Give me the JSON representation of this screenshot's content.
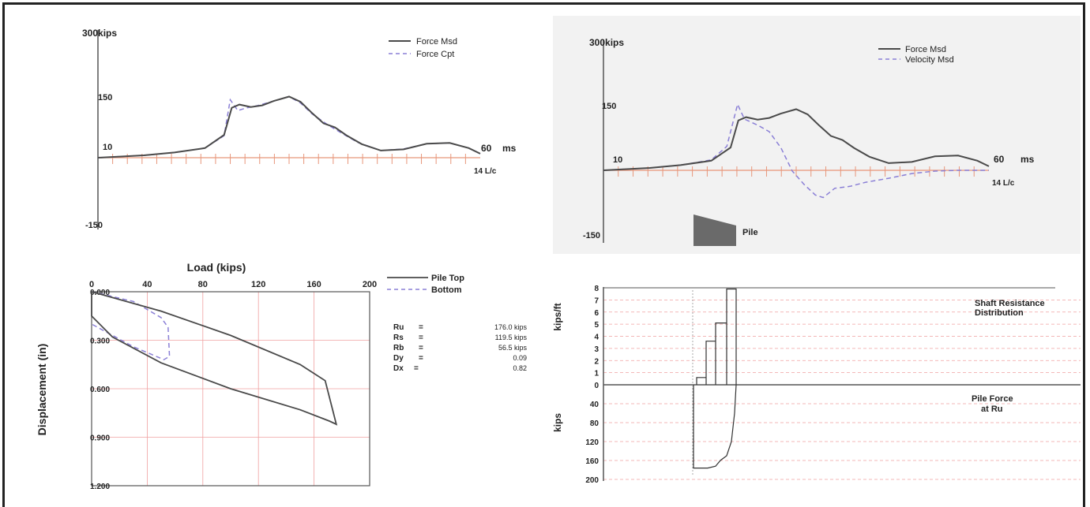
{
  "colors": {
    "measured": "#4a4a4a",
    "computed": "#8a7fd6",
    "tick": "#e8967a",
    "grid": "#f0a0a0",
    "pile_fill": "#6a6a6a"
  },
  "force_chart": {
    "y_label": "300kips",
    "legend": [
      "Force Msd",
      "Force Cpt"
    ],
    "y_ticks": [
      "150",
      "-150"
    ],
    "x_start_label": "10",
    "x_end_label": "60",
    "x_unit": "ms",
    "lc_label": "14 L/c"
  },
  "velocity_chart": {
    "y_label": "300kips",
    "legend": [
      "Force Msd",
      "Velocity Msd"
    ],
    "y_ticks": [
      "150",
      "-150"
    ],
    "x_start_label": "10",
    "x_end_label": "60",
    "x_unit": "ms",
    "lc_label": "14 L/c",
    "pile_label": "Pile"
  },
  "load_chart": {
    "x_title": "Load (kips)",
    "y_title": "Displacement (in)",
    "x_ticks": [
      "0",
      "40",
      "80",
      "120",
      "160",
      "200"
    ],
    "y_ticks": [
      "0.000",
      "0.300",
      "0.600",
      "0.900",
      "1.200"
    ],
    "legend": [
      "Pile Top",
      "Bottom"
    ],
    "results": [
      {
        "label": "Ru",
        "eq": "=",
        "value": "176.0 kips"
      },
      {
        "label": "Rs",
        "eq": "=",
        "value": "119.5 kips"
      },
      {
        "label": "Rb",
        "eq": "=",
        "value": "56.5 kips"
      },
      {
        "label": "Dy",
        "eq": "=",
        "value": "0.09"
      },
      {
        "label": "Dx",
        "eq": "=",
        "value": "0.82"
      }
    ]
  },
  "distribution_chart": {
    "upper_unit": "kips/ft",
    "lower_unit": "kips",
    "upper_ticks": [
      "8",
      "7",
      "6",
      "5",
      "4",
      "3",
      "2",
      "1",
      "0"
    ],
    "lower_ticks": [
      "40",
      "80",
      "120",
      "160",
      "200"
    ],
    "upper_title": [
      "Shaft Resistance",
      "Distribution"
    ],
    "lower_title": [
      "Pile Force",
      "at Ru"
    ]
  },
  "chart_data": [
    {
      "type": "line",
      "title": "",
      "ylim": [
        -150,
        300
      ],
      "xlim": [
        10,
        60
      ],
      "series": [
        {
          "name": "Force Msd",
          "x": [
            10,
            16,
            20,
            24,
            26.5,
            27.5,
            28.5,
            30,
            31.5,
            33,
            35,
            36.5,
            38,
            39.5,
            41,
            42.5,
            44.5,
            47,
            50,
            53,
            56,
            58.5,
            60
          ],
          "y": [
            0,
            6,
            13,
            24,
            57,
            125,
            133,
            127,
            131,
            142,
            153,
            140,
            112,
            86,
            76,
            56,
            34,
            18,
            21,
            35,
            37,
            24,
            10
          ]
        },
        {
          "name": "Force Cpt",
          "x": [
            10,
            16,
            20,
            24,
            26.5,
            27.3,
            28.3,
            29.3,
            31,
            33,
            35,
            36.5,
            38,
            40,
            42,
            44,
            47,
            50,
            53,
            56,
            58.5,
            60
          ],
          "y": [
            0,
            6,
            13,
            24,
            55,
            145,
            118,
            124,
            131,
            142,
            153,
            137,
            110,
            83,
            60,
            38,
            18,
            22,
            35,
            37,
            24,
            10
          ]
        }
      ]
    },
    {
      "type": "line",
      "title": "",
      "ylim": [
        -150,
        300
      ],
      "xlim": [
        10,
        60
      ],
      "series": [
        {
          "name": "Force Msd",
          "x": [
            10,
            16,
            20,
            24,
            26.5,
            27.5,
            28.5,
            30,
            31.5,
            33,
            35,
            36.5,
            38,
            39.5,
            41,
            42.5,
            44.5,
            47,
            50,
            53,
            56,
            58.5,
            60
          ],
          "y": [
            0,
            6,
            13,
            24,
            57,
            125,
            133,
            127,
            131,
            142,
            153,
            140,
            112,
            86,
            76,
            56,
            34,
            18,
            21,
            35,
            37,
            24,
            10
          ]
        },
        {
          "name": "Velocity Msd",
          "x": [
            10,
            16,
            20,
            24,
            26,
            27.4,
            28.3,
            30,
            31.5,
            33,
            34.5,
            36,
            37.5,
            38.5,
            40,
            42,
            44,
            47,
            50,
            53,
            56,
            60
          ],
          "y": [
            0,
            6,
            13,
            26,
            60,
            165,
            128,
            113,
            97,
            57,
            -2,
            -35,
            -62,
            -68,
            -45,
            -40,
            -30,
            -20,
            -8,
            -2,
            0,
            0
          ]
        }
      ]
    },
    {
      "type": "line",
      "title": "",
      "xlabel": "Load (kips)",
      "ylabel": "Displacement (in)",
      "xlim": [
        0,
        200
      ],
      "ylim": [
        1.2,
        0
      ],
      "series": [
        {
          "name": "Pile Top",
          "x": [
            0,
            50,
            100,
            150,
            168,
            176,
            171,
            150,
            100,
            50,
            15,
            0,
            0
          ],
          "y": [
            0,
            0.12,
            0.27,
            0.45,
            0.55,
            0.82,
            0.8,
            0.73,
            0.6,
            0.44,
            0.28,
            0.15,
            0
          ]
        },
        {
          "name": "Bottom",
          "x": [
            0,
            30,
            50,
            55,
            56,
            52,
            30,
            0
          ],
          "y": [
            0,
            0.06,
            0.16,
            0.22,
            0.4,
            0.42,
            0.34,
            0.2
          ]
        }
      ]
    },
    {
      "type": "bar",
      "title": "Shaft Resistance Distribution",
      "ylabel": "kips/ft",
      "ylim": [
        0,
        8
      ],
      "values": [
        0.6,
        3.6,
        5.1,
        7.9
      ]
    },
    {
      "type": "line",
      "title": "Pile Force at Ru",
      "ylabel": "kips",
      "ylim": [
        200,
        0
      ],
      "values": [
        176,
        176,
        172,
        160,
        150,
        120,
        60,
        0
      ]
    }
  ]
}
